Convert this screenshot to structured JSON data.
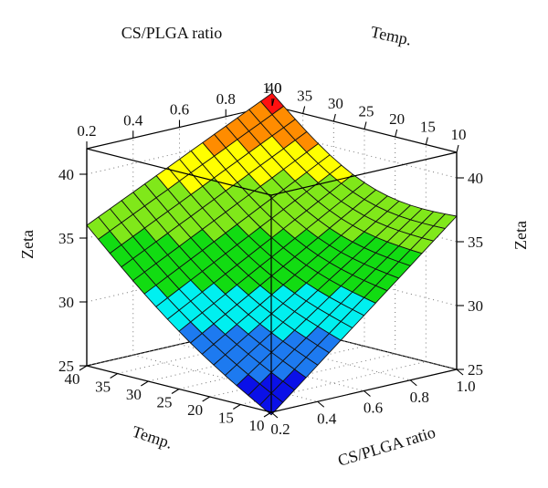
{
  "chart_data": {
    "type": "surface3d",
    "xlabel": "CS/PLGA ratio",
    "ylabel": "Temp.",
    "zlabel": "Zeta",
    "xlim": [
      0.2,
      1.0
    ],
    "ylim": [
      10,
      40
    ],
    "zlim": [
      25,
      42
    ],
    "x_ticks": [
      "0.2",
      "0.4",
      "0.6",
      "0.8",
      "1.0"
    ],
    "y_ticks": [
      "10",
      "15",
      "20",
      "25",
      "30",
      "35",
      "40"
    ],
    "z_ticks": [
      "25",
      "30",
      "35",
      "40"
    ],
    "surface_corners": {
      "ratio_0.2_temp_40": 36.0,
      "ratio_0.2_temp_10": 24.8,
      "ratio_1.0_temp_40": 43.0,
      "ratio_1.0_temp_10": 37.0
    },
    "color_bands": [
      {
        "from": 24,
        "to": 27,
        "color": "#0a10e8"
      },
      {
        "from": 27,
        "to": 29.5,
        "color": "#1d7af0"
      },
      {
        "from": 29.5,
        "to": 32,
        "color": "#00f0f0"
      },
      {
        "from": 32,
        "to": 35,
        "color": "#12dc12"
      },
      {
        "from": 35,
        "to": 38,
        "color": "#80e81a"
      },
      {
        "from": 38,
        "to": 40,
        "color": "#ffff00"
      },
      {
        "from": 40,
        "to": 42,
        "color": "#ff8c00"
      },
      {
        "from": 42,
        "to": 44,
        "color": "#ff1010"
      }
    ],
    "grid": "dotted back panels"
  }
}
